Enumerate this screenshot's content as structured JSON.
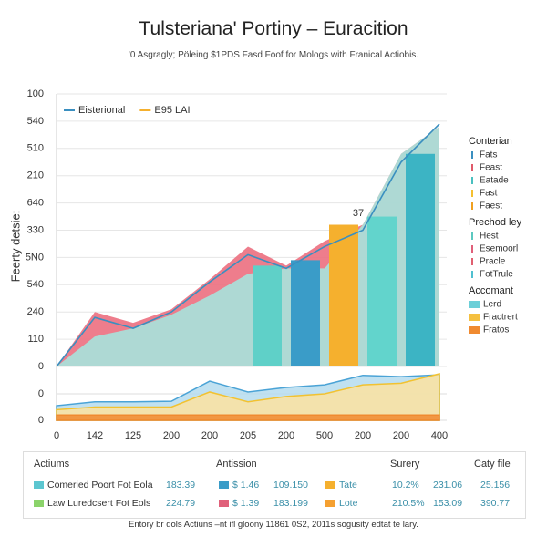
{
  "header": {
    "title": "Tulsteriana' Portiny – Euracition",
    "subtitle": "'0 Asgragly; Pöleing $1PDS Fasd Foof for Mologs with Franical Actiobis."
  },
  "chart_data": [
    {
      "type": "combo",
      "y_label": "Feerty detsie:",
      "ylim": [
        0,
        100
      ],
      "yticks": [
        0,
        {
          "value": 10,
          "label": "110"
        },
        {
          "value": 20,
          "label": "240"
        },
        {
          "value": 30,
          "label": "540"
        },
        {
          "value": 40,
          "label": "5N0"
        },
        {
          "value": 50,
          "label": "330"
        },
        {
          "value": 60,
          "label": "640"
        },
        {
          "value": 70,
          "label": "210"
        },
        {
          "value": 80,
          "label": "510"
        },
        {
          "value": 90,
          "label": "540"
        },
        100
      ],
      "grid": true,
      "legend": "top-left",
      "annotation": "37",
      "series": [
        {
          "kind": "area",
          "color": "#ec6f80",
          "values": [
            0,
            20,
            16,
            21,
            32,
            44,
            37,
            46,
            52,
            78,
            88
          ]
        },
        {
          "kind": "area",
          "color": "#a6e3dc",
          "values": [
            0,
            11,
            14,
            19,
            26,
            34,
            36,
            36,
            52,
            78,
            88
          ]
        },
        {
          "name": "Eisterional",
          "kind": "line",
          "color": "#3a8fc0",
          "values": [
            0,
            18,
            14,
            20,
            31,
            41,
            36,
            44,
            50,
            75,
            89
          ]
        },
        {
          "name": "E95 LAI",
          "kind": "bar",
          "color": "#f5b02e",
          "bar_colors": [
            "#5fd0c8",
            "#3a9cc8",
            "#f5b02e",
            "#62d4cc",
            "#3cb4c4"
          ],
          "offset": 5,
          "values": [
            37,
            39,
            52,
            55,
            78
          ]
        }
      ]
    },
    {
      "type": "area",
      "ylim": [
        0,
        20
      ],
      "yticks": [
        0,
        {
          "value": 10,
          "label": "0"
        }
      ],
      "categories": [
        "0",
        "142",
        "125",
        "200",
        "200",
        "205",
        "200",
        "500",
        "200",
        "200",
        "400"
      ],
      "series": [
        {
          "color": "#4aa3d6",
          "fill": "#b5dcef",
          "values": [
            5.5,
            7,
            7,
            7.2,
            14.8,
            10.7,
            12.4,
            13.4,
            17,
            16.5,
            17.2
          ]
        },
        {
          "color": "#f2c230",
          "fill": "#fbe2a0",
          "values": [
            4,
            5,
            5,
            5,
            10.7,
            7,
            9,
            10,
            13.4,
            14,
            17.6
          ]
        },
        {
          "color": "#f08a30",
          "fill": "#f08a30",
          "values": [
            2,
            2,
            2,
            2,
            2,
            2,
            2,
            2,
            2,
            2,
            2
          ]
        }
      ]
    }
  ],
  "side_legend": [
    {
      "title": "Conterian",
      "items": [
        {
          "label": "Fats",
          "color": "#3a8fc0"
        },
        {
          "label": "Feast",
          "color": "#e05a6a"
        },
        {
          "label": "Eatade",
          "color": "#4ac0c0"
        },
        {
          "label": "Fast",
          "color": "#f5c030"
        },
        {
          "label": "Faest",
          "color": "#f0a020"
        }
      ]
    },
    {
      "title": "Prechod ley",
      "items": [
        {
          "label": "Hest",
          "color": "#5cc8c0"
        },
        {
          "label": "Esemoorl",
          "color": "#e0607a"
        },
        {
          "label": "Pracle",
          "color": "#e06070"
        },
        {
          "label": "FotTrule",
          "color": "#50c0d0"
        }
      ]
    },
    {
      "title": "Accomant",
      "wide": true,
      "items": [
        {
          "label": "Lerd",
          "color": "#6ccfd8"
        },
        {
          "label": "Fractrert",
          "color": "#f5c040"
        },
        {
          "label": "Fratos",
          "color": "#f08a30"
        }
      ]
    }
  ],
  "table": {
    "headers": [
      "Actiums",
      "Antission",
      "Surery",
      "Caty file"
    ],
    "rows": [
      [
        "Comeried Poort Fot Eola",
        "183.39",
        "$ 1.46",
        "109.150",
        "Tate",
        "10.2%",
        "231.06",
        "25.156"
      ],
      [
        "Law Luredcsert Fot Eols",
        "224.79",
        "$ 1.39",
        "183.199",
        "Lote",
        "210.5%",
        "153.09",
        "390.77"
      ]
    ],
    "swatch_colors": [
      [
        "#5cc6d0",
        "#3a9cc8",
        "#f5b02e"
      ],
      [
        "#8bd36a",
        "#e0607a",
        "#f5a030"
      ]
    ]
  },
  "footnote": "Entory br dols Actiuns –nt ifl gloony 11861 0S2, 2011s sogusity edtat te lary."
}
